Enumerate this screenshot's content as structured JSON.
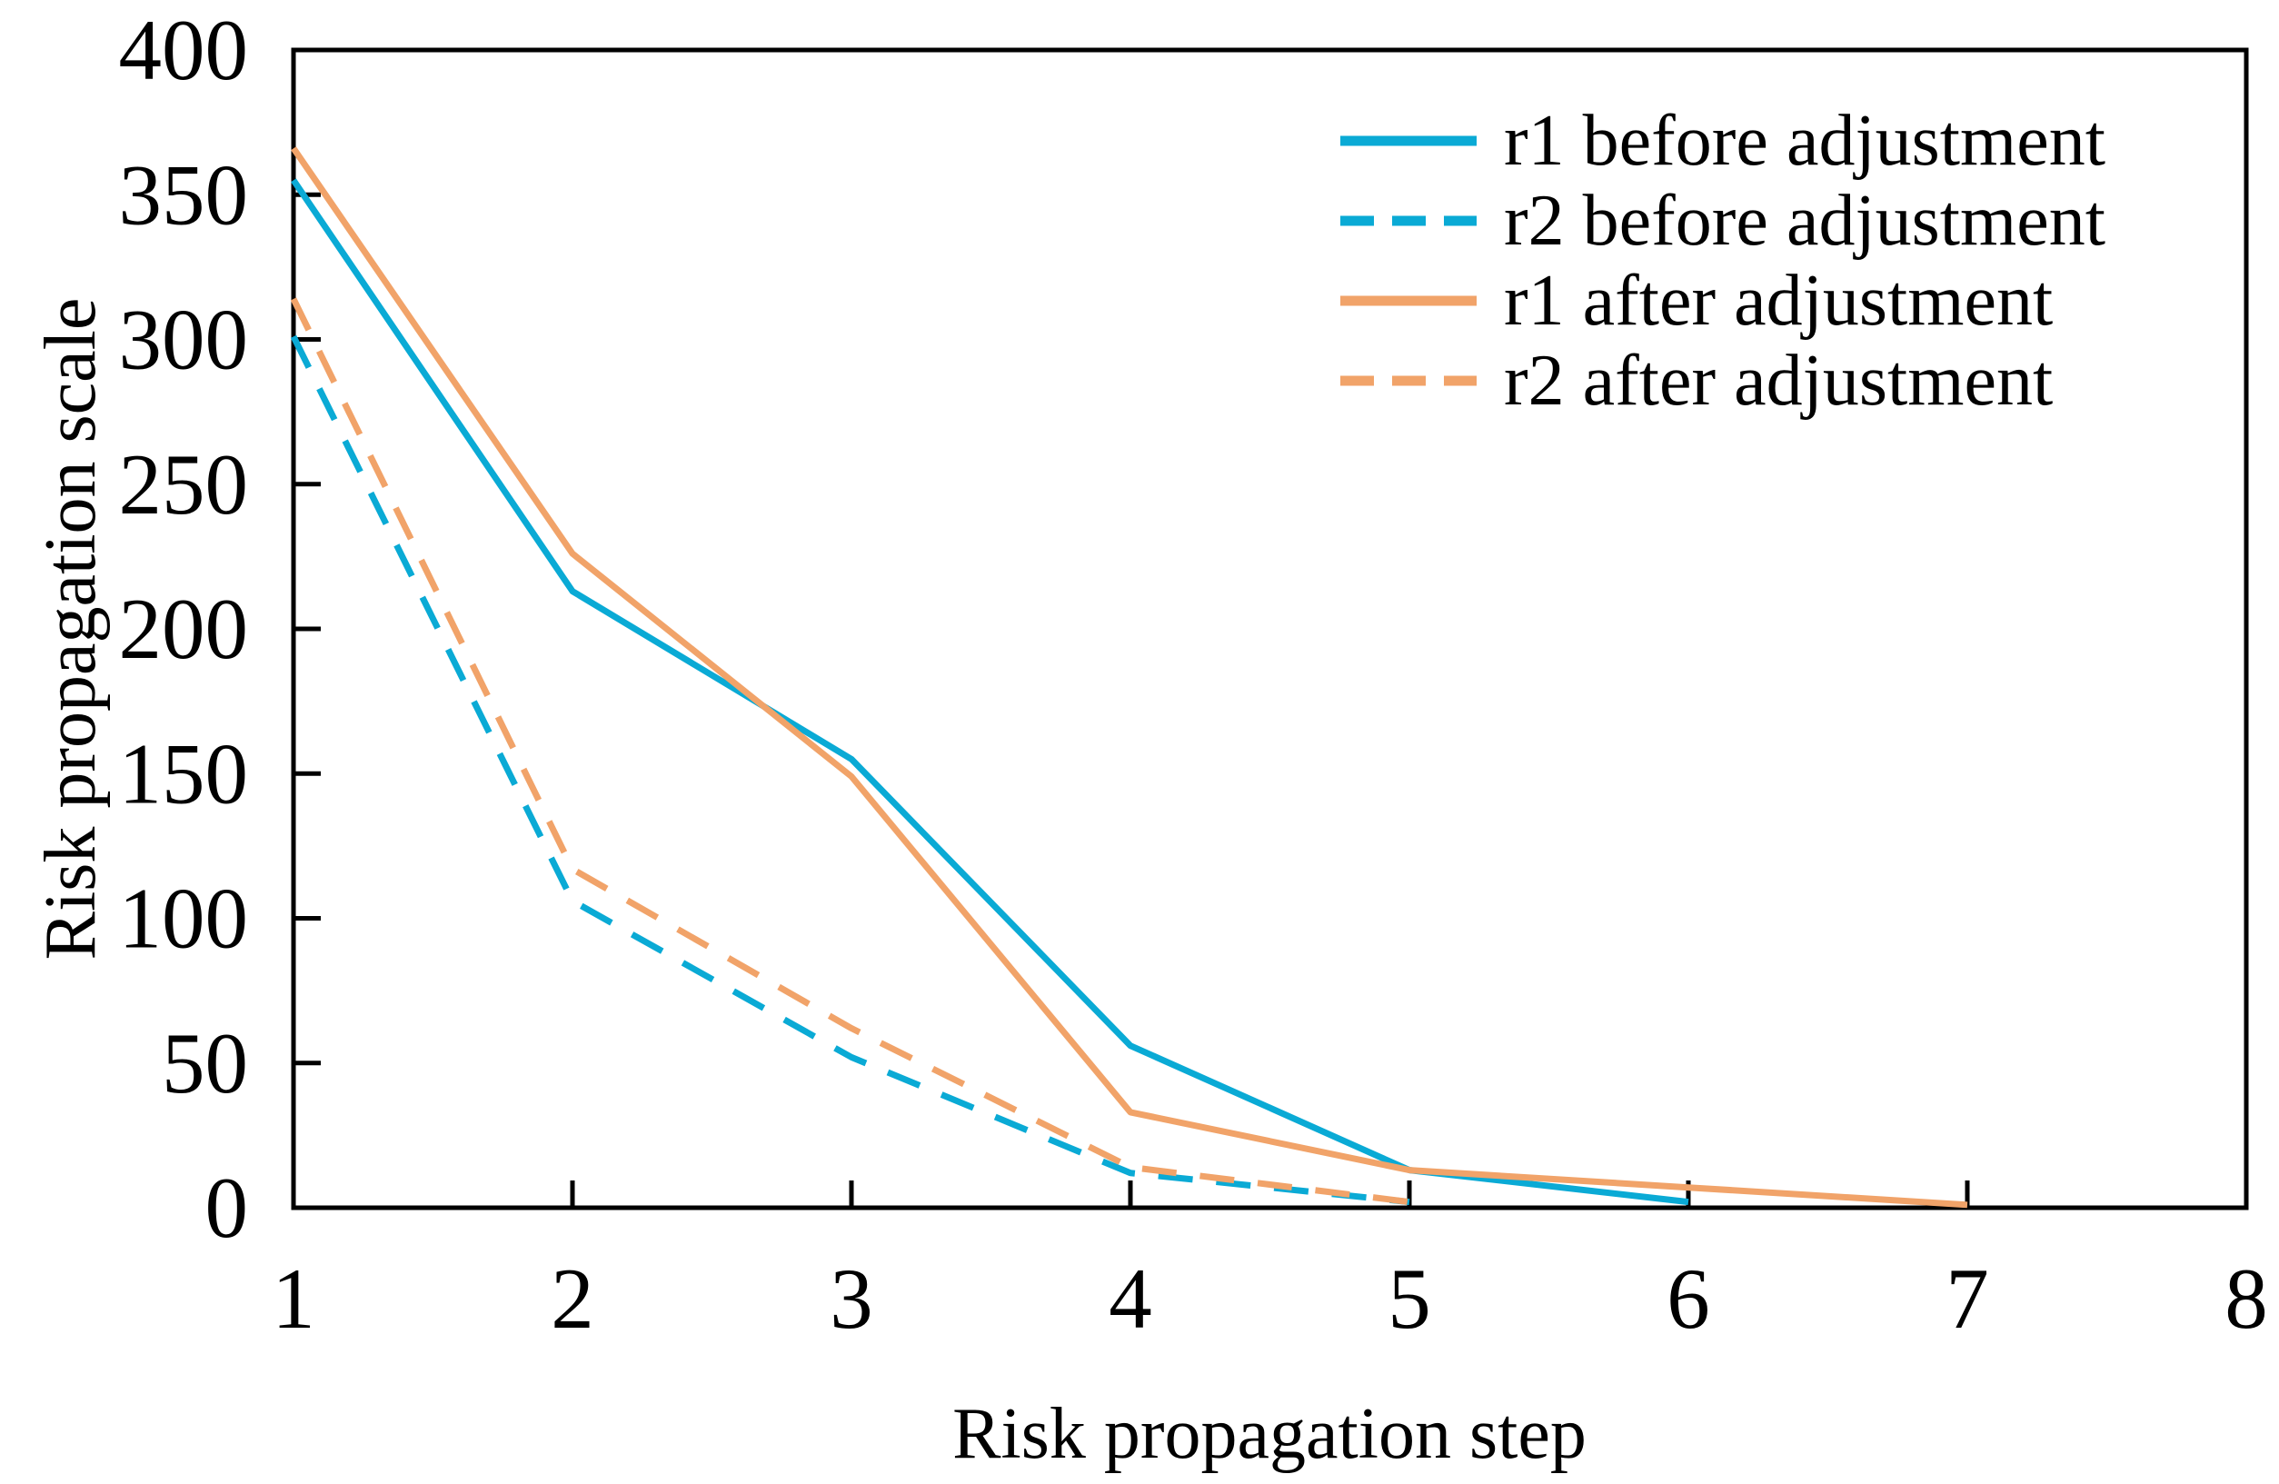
{
  "figure": {
    "background": "#ffffff",
    "axis_color": "#000000",
    "text_color": "#000000",
    "cyan": "#0aaad5",
    "orange": "#f1a369"
  },
  "chart_data": {
    "type": "line",
    "title": "",
    "xlabel": "Risk propagation step",
    "ylabel": "Risk propagation scale",
    "xlim": [
      1,
      8
    ],
    "ylim": [
      0,
      400
    ],
    "x_ticks": [
      1,
      2,
      3,
      4,
      5,
      6,
      7,
      8
    ],
    "y_ticks": [
      0,
      50,
      100,
      150,
      200,
      250,
      300,
      350,
      400
    ],
    "grid": false,
    "legend_position": "top-right-inside",
    "legend_border": false,
    "series": [
      {
        "name": "r1 before adjustment",
        "color": "#0aaad5",
        "style": "solid",
        "x": [
          1,
          2,
          3,
          4,
          5,
          6
        ],
        "values": [
          355,
          213,
          155,
          56,
          13,
          2
        ]
      },
      {
        "name": "r2 before adjustment",
        "color": "#0aaad5",
        "style": "dashed",
        "x": [
          1,
          2,
          3,
          4,
          5
        ],
        "values": [
          301,
          106,
          52,
          12,
          2
        ]
      },
      {
        "name": "r1 after adjustment",
        "color": "#f1a369",
        "style": "solid",
        "x": [
          1,
          2,
          3,
          4,
          5,
          6,
          7
        ],
        "values": [
          366,
          226,
          149,
          33,
          13,
          7,
          1
        ]
      },
      {
        "name": "r2 after adjustment",
        "color": "#f1a369",
        "style": "dashed",
        "x": [
          1,
          2,
          3,
          4,
          5
        ],
        "values": [
          314,
          117,
          62,
          14,
          2
        ]
      }
    ]
  }
}
